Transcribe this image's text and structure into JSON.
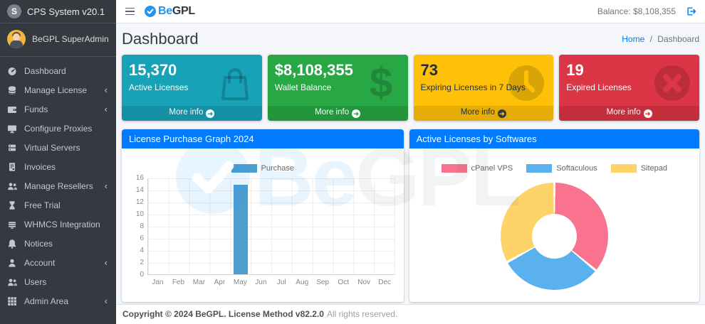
{
  "sidebar": {
    "brand": {
      "logo_letter": "S",
      "title": "CPS System v20.1"
    },
    "user": {
      "name": "BeGPL SuperAdmin"
    },
    "items": [
      {
        "label": "Dashboard",
        "icon": "dashboard-icon",
        "chevron": false
      },
      {
        "label": "Manage License",
        "icon": "database-icon",
        "chevron": true
      },
      {
        "label": "Funds",
        "icon": "wallet-icon",
        "chevron": true
      },
      {
        "label": "Configure Proxies",
        "icon": "desktop-icon",
        "chevron": false
      },
      {
        "label": "Virtual Servers",
        "icon": "server-icon",
        "chevron": false
      },
      {
        "label": "Invoices",
        "icon": "invoice-icon",
        "chevron": false
      },
      {
        "label": "Manage Resellers",
        "icon": "users-icon",
        "chevron": true
      },
      {
        "label": "Free Trial",
        "icon": "hourglass-icon",
        "chevron": false
      },
      {
        "label": "WHMCS Integration",
        "icon": "box-icon",
        "chevron": false
      },
      {
        "label": "Notices",
        "icon": "bell-icon",
        "chevron": false
      },
      {
        "label": "Account",
        "icon": "user-icon",
        "chevron": true
      },
      {
        "label": "Users",
        "icon": "users-icon",
        "chevron": false
      },
      {
        "label": "Admin Area",
        "icon": "grid-icon",
        "chevron": true
      }
    ],
    "chevron_glyph": "‹"
  },
  "navbar": {
    "logo_be": "Be",
    "logo_gpl": "GPL",
    "balance": "Balance: $8,108,355"
  },
  "page": {
    "title": "Dashboard",
    "breadcrumb_home": "Home",
    "breadcrumb_sep": "/",
    "breadcrumb_current": "Dashboard"
  },
  "small_boxes": [
    {
      "value": "15,370",
      "label": "Active Licenses",
      "more_label": "More info",
      "arrow_glyph": "➜",
      "color": "#17a2b8",
      "icon": "shopping-bag-icon"
    },
    {
      "value": "$8,108,355",
      "label": "Wallet Balance",
      "more_label": "More info",
      "arrow_glyph": "➜",
      "color": "#28a745",
      "icon": "dollar-icon"
    },
    {
      "value": "73",
      "label": "Expiring Licenses in 7 Days",
      "more_label": "More info",
      "arrow_glyph": "➜",
      "color": "#ffc107",
      "icon": "clock-icon"
    },
    {
      "value": "19",
      "label": "Expired Licenses",
      "more_label": "More info",
      "arrow_glyph": "➜",
      "color": "#dc3545",
      "icon": "x-circle-icon"
    }
  ],
  "watermark": {
    "text_be": "Be",
    "text_gpl": "GPL"
  },
  "chart_data": [
    {
      "type": "bar",
      "title": "License Purchase Graph 2024",
      "categories": [
        "Jan",
        "Feb",
        "Mar",
        "Apr",
        "May",
        "Jun",
        "Jul",
        "Aug",
        "Sep",
        "Oct",
        "Nov",
        "Dec"
      ],
      "series": [
        {
          "name": "Purchase",
          "values": [
            0,
            0,
            0,
            0,
            15,
            0,
            0,
            0,
            0,
            0,
            0,
            0
          ],
          "color": "#4D9DCD"
        }
      ],
      "xlabel": "",
      "ylabel": "",
      "ylim": [
        0,
        16
      ],
      "ytick": 2,
      "grid": true,
      "legend_position": "top"
    },
    {
      "type": "pie",
      "title": "Active Licenses by Softwares",
      "labels": [
        "cPanel VPS",
        "Softaculous",
        "Sitepad"
      ],
      "values": [
        36,
        31,
        33
      ],
      "colors": [
        "#F9738F",
        "#5BB0EE",
        "#FDD36A"
      ],
      "donut": true,
      "hole_ratio": 0.42,
      "start_angle_deg": 0,
      "legend_position": "top"
    }
  ],
  "footer": {
    "copyright_bold": "Copyright © 2024 BeGPL. License Method v82.2.0",
    "rights": "All rights reserved."
  }
}
